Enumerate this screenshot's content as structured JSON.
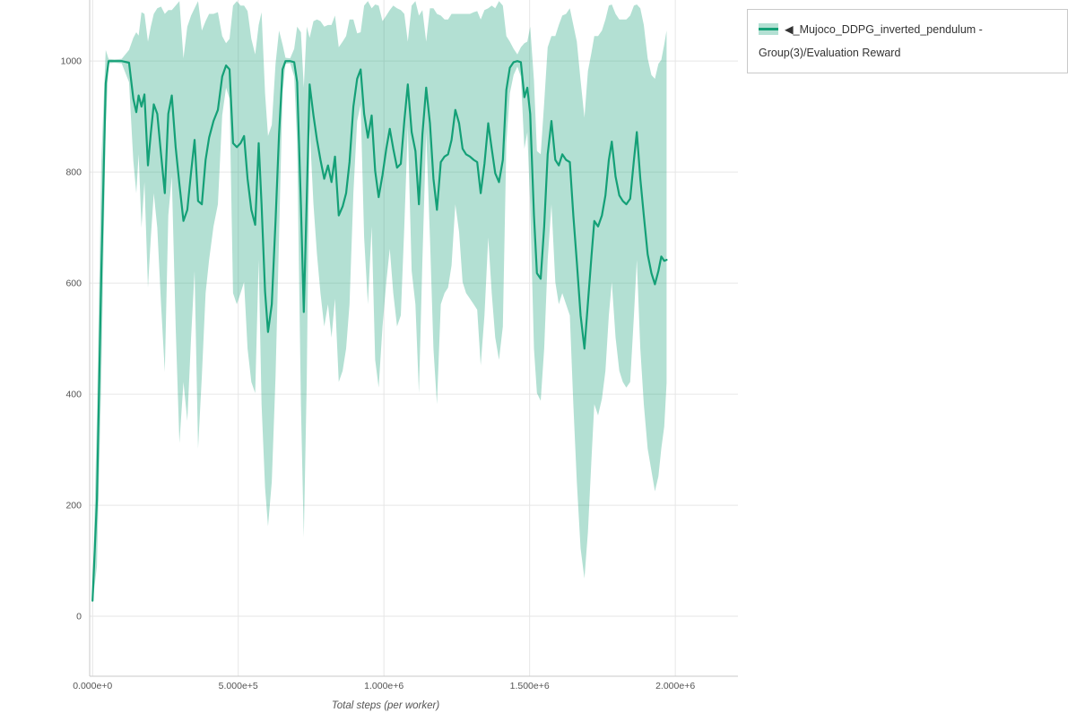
{
  "chart_data": {
    "type": "line",
    "title": "",
    "xlabel": "Total steps (per worker)",
    "ylabel": "",
    "grid": true,
    "legend_position": "top-right-outside",
    "xlim": [
      -10000,
      2215000
    ],
    "ylim": [
      -108,
      1110
    ],
    "x_ticks": [
      {
        "value": 0,
        "label": "0.000e+0"
      },
      {
        "value": 500000,
        "label": "5.000e+5"
      },
      {
        "value": 1000000,
        "label": "1.000e+6"
      },
      {
        "value": 1500000,
        "label": "1.500e+6"
      },
      {
        "value": 2000000,
        "label": "2.000e+6"
      }
    ],
    "y_ticks": [
      {
        "value": 0,
        "label": "0"
      },
      {
        "value": 200,
        "label": "200"
      },
      {
        "value": 400,
        "label": "400"
      },
      {
        "value": 600,
        "label": "600"
      },
      {
        "value": 800,
        "label": "800"
      },
      {
        "value": 1000,
        "label": "1000"
      }
    ],
    "colors": {
      "line": "#14a077",
      "band_fill": "rgba(20,160,119,0.32)",
      "grid": "#e6e6e6",
      "spine": "#c9c9c9",
      "tick_text": "#545454"
    },
    "series": [
      {
        "name": "◀_Mujoco_DDPG_inverted_pendulum - Group(3)/Evaluation Reward",
        "color": "#14a077",
        "band_fill": "rgba(20,160,119,0.32)",
        "points_format": [
          "x_steps",
          "mean",
          "band_low",
          "band_high"
        ],
        "points": [
          [
            0,
            28,
            24,
            33
          ],
          [
            15000,
            210,
            90,
            360
          ],
          [
            30000,
            620,
            430,
            820
          ],
          [
            45000,
            960,
            880,
            1020
          ],
          [
            55000,
            1000,
            996,
            1004
          ],
          [
            75000,
            1000,
            997,
            1003
          ],
          [
            100000,
            1000,
            996,
            1004
          ],
          [
            125000,
            997,
            962,
            1020
          ],
          [
            140000,
            932,
            820,
            1042
          ],
          [
            150000,
            908,
            762,
            1052
          ],
          [
            158000,
            938,
            832,
            1046
          ],
          [
            168000,
            918,
            700,
            1088
          ],
          [
            178000,
            940,
            782,
            1085
          ],
          [
            190000,
            812,
            592,
            1035
          ],
          [
            200000,
            870,
            682,
            1062
          ],
          [
            210000,
            922,
            762,
            1085
          ],
          [
            222000,
            905,
            700,
            1095
          ],
          [
            235000,
            832,
            562,
            1098
          ],
          [
            248000,
            762,
            440,
            1085
          ],
          [
            260000,
            905,
            722,
            1092
          ],
          [
            272000,
            938,
            792,
            1092
          ],
          [
            285000,
            845,
            522,
            1100
          ],
          [
            298000,
            778,
            312,
            1108
          ],
          [
            312000,
            712,
            422,
            1005
          ],
          [
            325000,
            732,
            352,
            1062
          ],
          [
            338000,
            800,
            502,
            1082
          ],
          [
            350000,
            858,
            622,
            1095
          ],
          [
            362000,
            748,
            302,
            1108
          ],
          [
            375000,
            742,
            432,
            1055
          ],
          [
            388000,
            822,
            582,
            1072
          ],
          [
            400000,
            862,
            642,
            1085
          ],
          [
            415000,
            892,
            702,
            1085
          ],
          [
            430000,
            912,
            742,
            1088
          ],
          [
            445000,
            972,
            902,
            1045
          ],
          [
            458000,
            992,
            952,
            1032
          ],
          [
            470000,
            985,
            932,
            1040
          ],
          [
            482000,
            852,
            582,
            1100
          ],
          [
            495000,
            845,
            562,
            1108
          ],
          [
            508000,
            852,
            582,
            1100
          ],
          [
            520000,
            865,
            602,
            1100
          ],
          [
            532000,
            788,
            482,
            1090
          ],
          [
            545000,
            732,
            422,
            1040
          ],
          [
            558000,
            705,
            402,
            1012
          ],
          [
            570000,
            852,
            642,
            1065
          ],
          [
            580000,
            742,
            382,
            1088
          ],
          [
            592000,
            585,
            232,
            942
          ],
          [
            602000,
            512,
            162,
            865
          ],
          [
            615000,
            562,
            242,
            885
          ],
          [
            628000,
            712,
            432,
            995
          ],
          [
            640000,
            868,
            682,
            1055
          ],
          [
            652000,
            985,
            942,
            1030
          ],
          [
            662000,
            1000,
            995,
            1006
          ],
          [
            678000,
            1000,
            996,
            1005
          ],
          [
            692000,
            998,
            972,
            1022
          ],
          [
            702000,
            962,
            852,
            1062
          ],
          [
            715000,
            740,
            382,
            1052
          ],
          [
            725000,
            548,
            142,
            952
          ],
          [
            735000,
            752,
            422,
            1062
          ],
          [
            745000,
            958,
            882,
            1042
          ],
          [
            758000,
            902,
            742,
            1072
          ],
          [
            770000,
            858,
            652,
            1075
          ],
          [
            782000,
            822,
            582,
            1072
          ],
          [
            795000,
            788,
            522,
            1062
          ],
          [
            808000,
            812,
            562,
            1065
          ],
          [
            820000,
            782,
            502,
            1065
          ],
          [
            832000,
            828,
            572,
            1082
          ],
          [
            845000,
            722,
            422,
            1025
          ],
          [
            858000,
            738,
            442,
            1035
          ],
          [
            870000,
            762,
            482,
            1045
          ],
          [
            882000,
            818,
            562,
            1075
          ],
          [
            895000,
            918,
            762,
            1075
          ],
          [
            908000,
            968,
            892,
            1050
          ],
          [
            920000,
            985,
            922,
            1052
          ],
          [
            932000,
            905,
            682,
            1100
          ],
          [
            945000,
            862,
            562,
            1108
          ],
          [
            958000,
            902,
            702,
            1095
          ],
          [
            970000,
            802,
            462,
            1102
          ],
          [
            982000,
            755,
            412,
            1100
          ],
          [
            995000,
            795,
            522,
            1072
          ],
          [
            1008000,
            842,
            602,
            1082
          ],
          [
            1020000,
            878,
            662,
            1092
          ],
          [
            1032000,
            842,
            582,
            1100
          ],
          [
            1045000,
            808,
            522,
            1095
          ],
          [
            1058000,
            815,
            542,
            1092
          ],
          [
            1070000,
            892,
            702,
            1085
          ],
          [
            1082000,
            958,
            882,
            1035
          ],
          [
            1095000,
            872,
            622,
            1100
          ],
          [
            1108000,
            838,
            562,
            1108
          ],
          [
            1120000,
            742,
            402,
            1082
          ],
          [
            1132000,
            868,
            642,
            1092
          ],
          [
            1145000,
            952,
            872,
            1035
          ],
          [
            1158000,
            888,
            682,
            1095
          ],
          [
            1170000,
            788,
            482,
            1095
          ],
          [
            1182000,
            732,
            382,
            1085
          ],
          [
            1195000,
            818,
            562,
            1082
          ],
          [
            1208000,
            828,
            582,
            1075
          ],
          [
            1220000,
            832,
            592,
            1075
          ],
          [
            1232000,
            858,
            632,
            1085
          ],
          [
            1245000,
            912,
            742,
            1085
          ],
          [
            1258000,
            888,
            692,
            1085
          ],
          [
            1270000,
            842,
            602,
            1085
          ],
          [
            1282000,
            832,
            582,
            1085
          ],
          [
            1295000,
            828,
            572,
            1085
          ],
          [
            1308000,
            822,
            562,
            1088
          ],
          [
            1320000,
            818,
            552,
            1090
          ],
          [
            1332000,
            762,
            452,
            1075
          ],
          [
            1345000,
            815,
            542,
            1092
          ],
          [
            1358000,
            888,
            682,
            1095
          ],
          [
            1370000,
            842,
            582,
            1100
          ],
          [
            1382000,
            798,
            502,
            1095
          ],
          [
            1395000,
            782,
            462,
            1108
          ],
          [
            1408000,
            822,
            522,
            1100
          ],
          [
            1420000,
            948,
            852,
            1045
          ],
          [
            1432000,
            988,
            942,
            1035
          ],
          [
            1445000,
            998,
            975,
            1022
          ],
          [
            1458000,
            1000,
            990,
            1012
          ],
          [
            1470000,
            998,
            972,
            1025
          ],
          [
            1482000,
            935,
            842,
            1032
          ],
          [
            1492000,
            952,
            872,
            1035
          ],
          [
            1502000,
            905,
            742,
            1062
          ],
          [
            1515000,
            722,
            482,
            965
          ],
          [
            1525000,
            618,
            402,
            838
          ],
          [
            1538000,
            608,
            388,
            832
          ],
          [
            1550000,
            702,
            482,
            925
          ],
          [
            1562000,
            832,
            642,
            1025
          ],
          [
            1575000,
            892,
            742,
            1045
          ],
          [
            1588000,
            822,
            602,
            1045
          ],
          [
            1600000,
            812,
            562,
            1065
          ],
          [
            1612000,
            832,
            582,
            1082
          ],
          [
            1625000,
            822,
            562,
            1085
          ],
          [
            1638000,
            818,
            542,
            1095
          ],
          [
            1650000,
            722,
            382,
            1065
          ],
          [
            1662000,
            638,
            242,
            1035
          ],
          [
            1675000,
            542,
            122,
            965
          ],
          [
            1688000,
            482,
            68,
            898
          ],
          [
            1700000,
            565,
            152,
            982
          ],
          [
            1712000,
            648,
            282,
            1015
          ],
          [
            1722000,
            712,
            382,
            1045
          ],
          [
            1735000,
            702,
            362,
            1045
          ],
          [
            1748000,
            722,
            392,
            1055
          ],
          [
            1760000,
            758,
            442,
            1075
          ],
          [
            1772000,
            822,
            542,
            1100
          ],
          [
            1782000,
            855,
            602,
            1102
          ],
          [
            1795000,
            792,
            502,
            1085
          ],
          [
            1808000,
            758,
            442,
            1075
          ],
          [
            1820000,
            748,
            422,
            1075
          ],
          [
            1832000,
            742,
            412,
            1075
          ],
          [
            1845000,
            752,
            422,
            1082
          ],
          [
            1858000,
            822,
            542,
            1100
          ],
          [
            1868000,
            872,
            642,
            1102
          ],
          [
            1880000,
            788,
            482,
            1095
          ],
          [
            1892000,
            722,
            382,
            1065
          ],
          [
            1905000,
            652,
            302,
            1005
          ],
          [
            1918000,
            618,
            262,
            975
          ],
          [
            1930000,
            598,
            225,
            968
          ],
          [
            1942000,
            622,
            252,
            995
          ],
          [
            1952000,
            648,
            302,
            1002
          ],
          [
            1962000,
            640,
            342,
            1030
          ],
          [
            1970000,
            642,
            420,
            1055
          ]
        ]
      }
    ]
  }
}
